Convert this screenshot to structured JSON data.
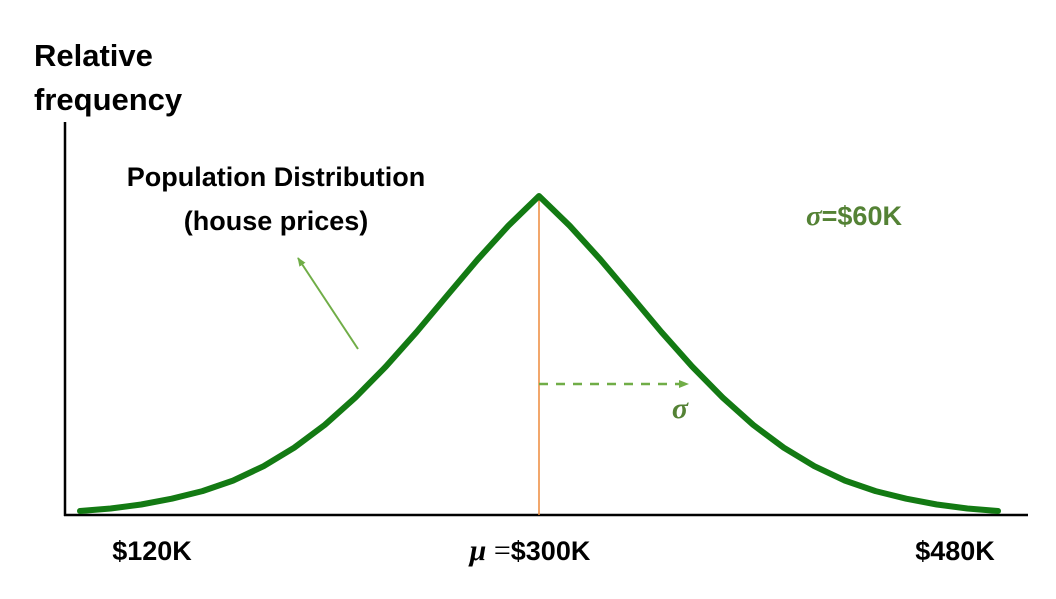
{
  "chart_data": {
    "type": "line",
    "ylabel_lines": [
      "Relative",
      "frequency"
    ],
    "xlabel": "",
    "distribution": "normal",
    "mean": 300,
    "sd": 60,
    "xlim": [
      108,
      498
    ],
    "x_ticks": [
      {
        "value": 120,
        "label": "$120K"
      },
      {
        "value": 300,
        "label_symbol": "μ",
        "label_eq": " =",
        "label": "$300K"
      },
      {
        "value": 480,
        "label": "$480K"
      }
    ],
    "grid": false,
    "series": [
      {
        "name": "",
        "x": [
          120,
          132,
          144,
          156,
          168,
          180,
          192,
          204,
          216,
          228,
          240,
          252,
          264,
          276,
          288,
          300,
          312,
          324,
          336,
          348,
          360,
          372,
          384,
          396,
          408,
          420,
          432,
          444,
          456,
          468,
          480
        ],
        "y": [
          0.011,
          0.018,
          0.029,
          0.045,
          0.066,
          0.095,
          0.135,
          0.186,
          0.249,
          0.325,
          0.411,
          0.506,
          0.607,
          0.707,
          0.8,
          0.882,
          0.8,
          0.707,
          0.607,
          0.506,
          0.411,
          0.325,
          0.249,
          0.186,
          0.135,
          0.095,
          0.066,
          0.045,
          0.029,
          0.018,
          0.011
        ]
      }
    ],
    "annotations": {
      "curve_label_line1": "Population Distribution",
      "curve_label_line2": "(house prices)",
      "sigma_label_symbol": "σ",
      "sigma_label_value": "=$60K",
      "sigma_arrow_symbol": "σ"
    },
    "colors": {
      "curve": "#137a13",
      "mean_line": "#ed8a3c",
      "sigma_arrow": "#70ad47",
      "sigma_text": "#548235",
      "axis": "#000000"
    }
  }
}
